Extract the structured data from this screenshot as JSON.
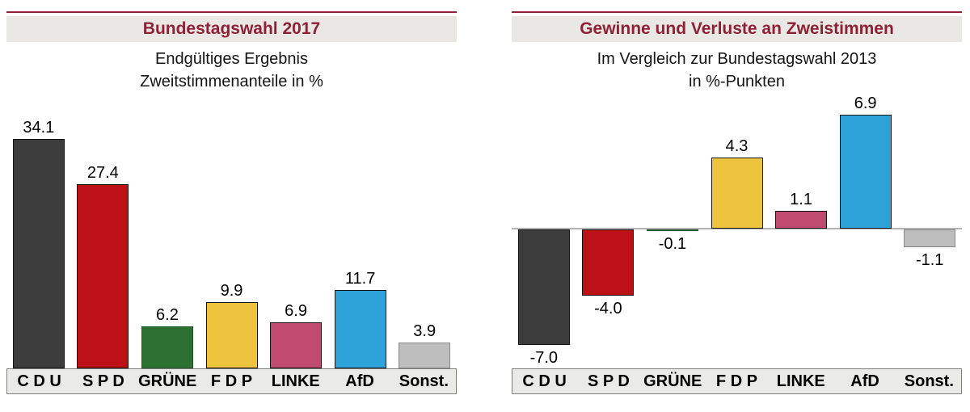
{
  "page": {
    "background": "#ffffff",
    "accent_red": "#8e2135",
    "header_gray": "#e9e8e5",
    "strip_gray": "#eaeae8"
  },
  "chart_data": [
    {
      "type": "bar",
      "title": "Bundestagswahl 2017",
      "subtitle_lines": [
        "Endgültiges Ergebnis",
        "Zweitstimmenanteile in %"
      ],
      "categories": [
        "C D U",
        "S P D",
        "GRÜNE",
        "F D P",
        "LINKE",
        "AfD",
        "Sonst."
      ],
      "values": [
        34.1,
        27.4,
        6.2,
        9.9,
        6.9,
        11.7,
        3.9
      ],
      "value_labels": [
        "34.1",
        "27.4",
        "6.2",
        "9.9",
        "6.9",
        "11.7",
        "3.9"
      ],
      "bar_colors": [
        "#3c3c3c",
        "#bb1117",
        "#2c7132",
        "#eec43f",
        "#c14a70",
        "#2ea3da",
        "#bdbdbd"
      ],
      "bar_border_colors": [
        "#151515",
        "#151515",
        "#1f5724",
        "#151515",
        "#151515",
        "#151515",
        "#8a8a8a"
      ],
      "xlabel": "",
      "ylabel": "",
      "ylim": [
        0,
        36
      ],
      "grid": false,
      "legend": false,
      "value_label_position": "above-bar"
    },
    {
      "type": "bar",
      "title": "Gewinne und Verluste an Zweistimmen",
      "subtitle_lines": [
        "Im Vergleich zur Bundestagswahl 2013",
        "in %-Punkten"
      ],
      "categories": [
        "C D U",
        "S P D",
        "GRÜNE",
        "F D P",
        "LINKE",
        "AfD",
        "Sonst."
      ],
      "values": [
        -7.0,
        -4.0,
        -0.1,
        4.3,
        1.1,
        6.9,
        -1.1
      ],
      "value_labels": [
        "-7.0",
        "-4.0",
        "-0.1",
        "4.3",
        "1.1",
        "6.9",
        "-1.1"
      ],
      "bar_colors": [
        "#3c3c3c",
        "#bb1117",
        "#2c7132",
        "#eec43f",
        "#c14a70",
        "#2ea3da",
        "#bdbdbd"
      ],
      "bar_border_colors": [
        "#151515",
        "#151515",
        "#1f5724",
        "#151515",
        "#151515",
        "#151515",
        "#8a8a8a"
      ],
      "xlabel": "",
      "ylabel": "",
      "ylim": [
        -8,
        8
      ],
      "zero_line": true,
      "grid": false,
      "legend": false,
      "value_label_position": "outside-bar-end"
    }
  ]
}
